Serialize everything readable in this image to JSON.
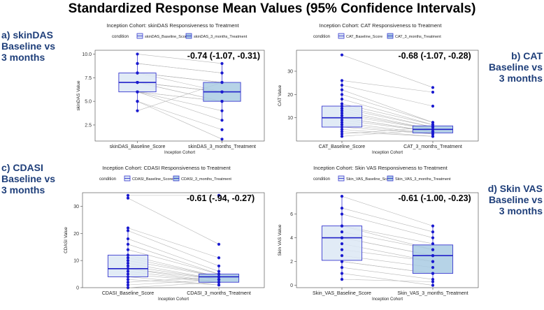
{
  "figure": {
    "title": "Standardized Response Mean Values (95% Confidence Intervals)",
    "colors": {
      "baseline_fill": "#dce8f5",
      "treatment_fill": "#a9cbe3",
      "box_stroke": "#3a3ad0",
      "median": "#2020c8",
      "point": "#1a1ad0",
      "pair_line": "#b8b8b8",
      "label_blue": "#1f3f7a"
    }
  },
  "labels": {
    "a": [
      "a) skinDAS",
      "Baseline vs",
      "3 months"
    ],
    "b": [
      "b) CAT",
      "Baseline vs",
      "3 months"
    ],
    "c": [
      "c) CDASI",
      "Baseline vs",
      "3 months"
    ],
    "d": [
      "d) Skin VAS",
      "Baseline vs",
      "3 months"
    ]
  },
  "chart_data": [
    {
      "type": "box",
      "title": "Inception Cohort: skinDAS Responsiveness to Treatment",
      "legend_title": "condition",
      "categories": [
        "skinDAS_Baseline_Score",
        "skinDAS_3_months_Treatment"
      ],
      "xlabel": "Inception Cohort",
      "ylabel": "skinDAS Value",
      "ylim": [
        0.8,
        10.4
      ],
      "yticks": [
        2.5,
        5.0,
        7.5,
        10.0
      ],
      "ytick_labels": [
        "2.5",
        "5.0",
        "7.5",
        "10.0"
      ],
      "srm": "-0.74 (-1.07, -0.31)",
      "boxes": [
        {
          "low": 4,
          "q1": 6,
          "median": 7,
          "q3": 8,
          "high": 10
        },
        {
          "low": 3,
          "q1": 5,
          "median": 6,
          "q3": 7,
          "high": 9
        }
      ],
      "points": [
        [
          10,
          9,
          9,
          8,
          8,
          8,
          8,
          7,
          7,
          7,
          7,
          7,
          7,
          6,
          6,
          6,
          6,
          5,
          5,
          4
        ],
        [
          9,
          8,
          8,
          7,
          7,
          7,
          6,
          6,
          6,
          6,
          6,
          5,
          5,
          5,
          5,
          4,
          3,
          2,
          1,
          7
        ]
      ]
    },
    {
      "type": "box",
      "title": "Inception Cohort: CAT Responsiveness to Treatment",
      "legend_title": "condition",
      "categories": [
        "CAT_Baseline_Score",
        "CAT_3_months_Treatment"
      ],
      "xlabel": "Inception Cohort",
      "ylabel": "CAT Value",
      "ylim": [
        0,
        39
      ],
      "yticks": [
        10,
        20,
        30
      ],
      "ytick_labels": [
        "10",
        "20",
        "30"
      ],
      "srm": "-0.68 (-1.07, -0.28)",
      "boxes": [
        {
          "low": 2,
          "q1": 6,
          "median": 10,
          "q3": 15,
          "high": 26
        },
        {
          "low": 2,
          "q1": 3.5,
          "median": 5,
          "q3": 6.5,
          "high": 8
        }
      ],
      "points": [
        [
          37,
          26,
          24,
          22,
          20,
          18,
          16,
          15,
          14,
          13,
          12,
          11,
          10,
          10,
          9,
          8,
          7,
          6,
          5,
          4,
          3,
          2
        ],
        [
          23,
          21,
          15,
          8,
          8,
          7,
          7,
          6,
          6,
          5,
          5,
          5,
          4,
          4,
          4,
          3,
          3,
          3,
          2,
          2,
          6,
          5
        ]
      ]
    },
    {
      "type": "box",
      "title": "Inception Cohort: CDASI Responsiveness to Treatment",
      "legend_title": "condition",
      "categories": [
        "CDASI_Baseline_Score",
        "CDASI_3_months_Treatment"
      ],
      "xlabel": "Inception Cohort",
      "ylabel": "CDASI Value",
      "ylim": [
        0,
        35
      ],
      "yticks": [
        0,
        10,
        20,
        30
      ],
      "ytick_labels": [
        "0",
        "10",
        "20",
        "30"
      ],
      "srm": "-0.61 (-.94, -0.27)",
      "boxes": [
        {
          "low": 0,
          "q1": 4,
          "median": 7,
          "q3": 12,
          "high": 21
        },
        {
          "low": 1,
          "q1": 2,
          "median": 4,
          "q3": 5,
          "high": 8
        }
      ],
      "points": [
        [
          34,
          33,
          22,
          21,
          18,
          16,
          14,
          12,
          11,
          10,
          9,
          8,
          7,
          7,
          6,
          5,
          4,
          3,
          2,
          1,
          0
        ],
        [
          34,
          16,
          11,
          8,
          6,
          5,
          5,
          4,
          4,
          4,
          3,
          3,
          3,
          2,
          2,
          2,
          1,
          1,
          4,
          3,
          2
        ]
      ]
    },
    {
      "type": "box",
      "title": "Inception Cohort: Skin VAS Responsiveness to Treatment",
      "legend_title": "condition",
      "categories": [
        "Skin_VAS_Baseline_Score",
        "Skin_VAS_3_months_Treatment"
      ],
      "xlabel": "Inception Cohort",
      "ylabel": "Skin VAS Value",
      "ylim": [
        -0.2,
        7.8
      ],
      "yticks": [
        0,
        2,
        4,
        6
      ],
      "ytick_labels": [
        "0",
        "2",
        "4",
        "6"
      ],
      "srm": "-0.61 (-1.00, -0.23)",
      "boxes": [
        {
          "low": 0.5,
          "q1": 2.1,
          "median": 4.0,
          "q3": 5.0,
          "high": 7.5
        },
        {
          "low": 0,
          "q1": 1.0,
          "median": 2.5,
          "q3": 3.4,
          "high": 5
        }
      ],
      "points": [
        [
          7.5,
          6.5,
          6,
          5,
          5,
          4.5,
          4,
          4,
          3.5,
          3,
          2.5,
          2,
          2,
          1.5,
          1,
          0.5
        ],
        [
          5,
          4.5,
          4,
          3.5,
          3,
          3,
          2.5,
          2.5,
          2,
          2,
          1.5,
          1,
          1,
          0.5,
          0,
          0.3
        ]
      ]
    }
  ]
}
